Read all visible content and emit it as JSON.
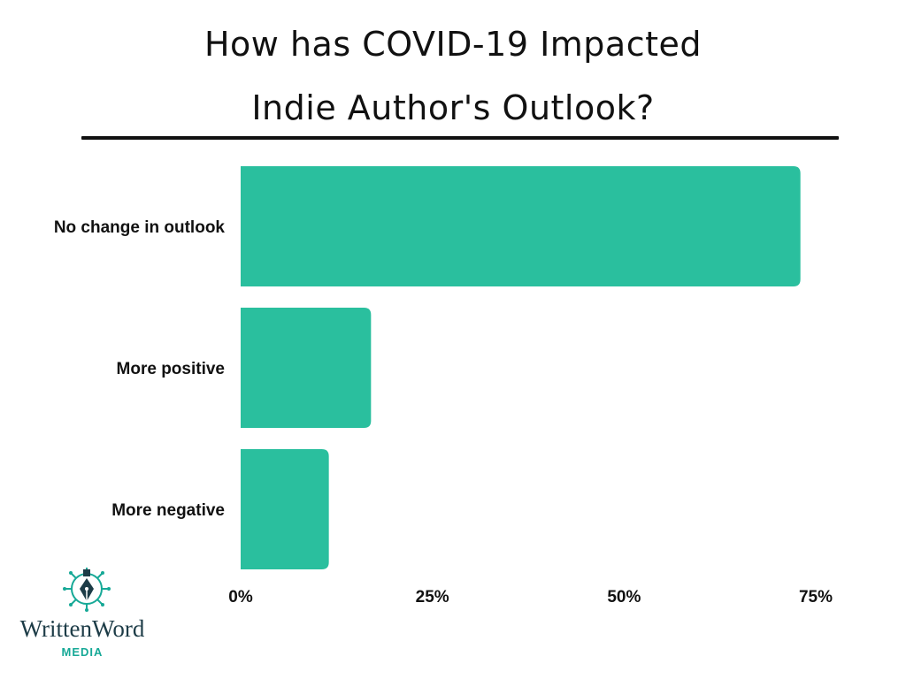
{
  "title": {
    "line1": "How has COVID-19 Impacted",
    "line2": "Indie Author's Outlook?"
  },
  "brand": {
    "name": "WrittenWord",
    "sub": "MEDIA",
    "icon": "pen-nib-circuit-icon",
    "color_dark": "#1d3c47",
    "color_accent": "#17a997"
  },
  "colors": {
    "bar": "#2abf9e",
    "text": "#111111",
    "rule": "#111111"
  },
  "chart_data": {
    "type": "bar",
    "orientation": "horizontal",
    "title": "How has COVID-19 Impacted Indie Author's Outlook?",
    "xlabel": "",
    "ylabel": "",
    "categories": [
      "No change in outlook",
      "More positive",
      "More negative"
    ],
    "values": [
      73,
      17,
      11.5
    ],
    "unit": "%",
    "xlim": [
      0,
      75
    ],
    "ticks": [
      0,
      25,
      50,
      75
    ],
    "tick_labels": [
      "0%",
      "25%",
      "50%",
      "75%"
    ],
    "grid": false,
    "legend": "none"
  }
}
